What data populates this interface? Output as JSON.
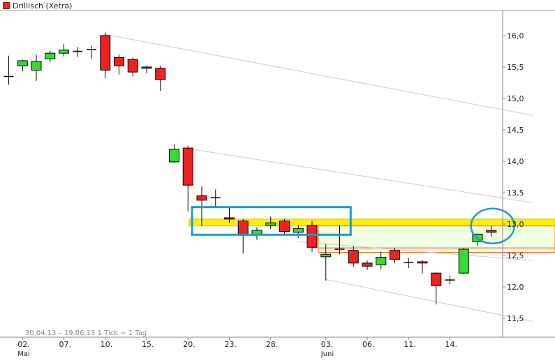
{
  "legend": {
    "label": "Drillisch (Xetra)"
  },
  "footer": {
    "note": "30.04.13 – 19.06.13   1 Tick = 1 Tag"
  },
  "chart_data": {
    "type": "candlestick",
    "ylim": [
      11.2,
      16.4
    ],
    "yticks": [
      11.5,
      12.0,
      12.5,
      13.0,
      13.5,
      14.0,
      14.5,
      15.0,
      15.5,
      16.0
    ],
    "ytick_labels": [
      "11,5",
      "12,0",
      "12,5",
      "13,0",
      "13,5",
      "14,0",
      "14,5",
      "15,0",
      "15,5",
      "16,0"
    ],
    "x_labels": [
      {
        "index": 1,
        "label": "02.",
        "sub": "Mai"
      },
      {
        "index": 4,
        "label": "07.",
        "sub": ""
      },
      {
        "index": 7,
        "label": "10.",
        "sub": ""
      },
      {
        "index": 10,
        "label": "15.",
        "sub": ""
      },
      {
        "index": 13,
        "label": "20.",
        "sub": ""
      },
      {
        "index": 16,
        "label": "23.",
        "sub": ""
      },
      {
        "index": 19,
        "label": "28.",
        "sub": ""
      },
      {
        "index": 23,
        "label": "03.",
        "sub": "Juni"
      },
      {
        "index": 26,
        "label": "06.",
        "sub": ""
      },
      {
        "index": 29,
        "label": "11.",
        "sub": ""
      },
      {
        "index": 32,
        "label": "14.",
        "sub": ""
      }
    ],
    "candles": [
      {
        "o": 15.35,
        "h": 15.68,
        "l": 15.22,
        "c": 15.35
      },
      {
        "o": 15.52,
        "h": 15.62,
        "l": 15.43,
        "c": 15.6
      },
      {
        "o": 15.45,
        "h": 15.7,
        "l": 15.28,
        "c": 15.59
      },
      {
        "o": 15.63,
        "h": 15.76,
        "l": 15.58,
        "c": 15.72
      },
      {
        "o": 15.72,
        "h": 15.87,
        "l": 15.67,
        "c": 15.77
      },
      {
        "o": 15.75,
        "h": 15.82,
        "l": 15.66,
        "c": 15.75
      },
      {
        "o": 15.78,
        "h": 15.84,
        "l": 15.63,
        "c": 15.78
      },
      {
        "o": 16.0,
        "h": 16.05,
        "l": 15.32,
        "c": 15.45
      },
      {
        "o": 15.65,
        "h": 15.7,
        "l": 15.38,
        "c": 15.52
      },
      {
        "o": 15.62,
        "h": 15.65,
        "l": 15.35,
        "c": 15.42
      },
      {
        "o": 15.5,
        "h": 15.52,
        "l": 15.4,
        "c": 15.48
      },
      {
        "o": 15.48,
        "h": 15.52,
        "l": 15.12,
        "c": 15.3
      },
      {
        "o": 13.99,
        "h": 14.27,
        "l": 13.98,
        "c": 14.19
      },
      {
        "o": 14.21,
        "h": 14.25,
        "l": 13.2,
        "c": 13.62
      },
      {
        "o": 13.45,
        "h": 13.6,
        "l": 12.97,
        "c": 13.38
      },
      {
        "o": 13.42,
        "h": 13.55,
        "l": 13.28,
        "c": 13.42
      },
      {
        "o": 13.1,
        "h": 13.28,
        "l": 13.02,
        "c": 13.08
      },
      {
        "o": 13.05,
        "h": 13.08,
        "l": 12.53,
        "c": 12.82
      },
      {
        "o": 12.83,
        "h": 12.95,
        "l": 12.75,
        "c": 12.9
      },
      {
        "o": 12.98,
        "h": 13.12,
        "l": 12.92,
        "c": 13.02
      },
      {
        "o": 13.05,
        "h": 13.08,
        "l": 12.82,
        "c": 12.88
      },
      {
        "o": 12.87,
        "h": 12.98,
        "l": 12.78,
        "c": 12.93
      },
      {
        "o": 12.98,
        "h": 13.05,
        "l": 12.56,
        "c": 12.63
      },
      {
        "o": 12.48,
        "h": 12.68,
        "l": 12.1,
        "c": 12.52
      },
      {
        "o": 12.6,
        "h": 12.98,
        "l": 12.52,
        "c": 12.6
      },
      {
        "o": 12.58,
        "h": 12.65,
        "l": 12.32,
        "c": 12.38
      },
      {
        "o": 12.38,
        "h": 12.42,
        "l": 12.27,
        "c": 12.33
      },
      {
        "o": 12.35,
        "h": 12.56,
        "l": 12.28,
        "c": 12.47
      },
      {
        "o": 12.58,
        "h": 12.62,
        "l": 12.38,
        "c": 12.44
      },
      {
        "o": 12.39,
        "h": 12.46,
        "l": 12.3,
        "c": 12.39
      },
      {
        "o": 12.4,
        "h": 12.43,
        "l": 12.22,
        "c": 12.38
      },
      {
        "o": 12.22,
        "h": 12.23,
        "l": 11.72,
        "c": 12.02
      },
      {
        "o": 12.11,
        "h": 12.18,
        "l": 12.04,
        "c": 12.11
      },
      {
        "o": 12.22,
        "h": 12.62,
        "l": 12.2,
        "c": 12.6
      },
      {
        "o": 12.72,
        "h": 12.85,
        "l": 12.65,
        "c": 12.84
      },
      {
        "o": 12.9,
        "h": 12.97,
        "l": 12.8,
        "c": 12.87
      }
    ],
    "trend_lines": [
      {
        "from": [
          7,
          16.02
        ],
        "to": [
          38,
          14.73
        ]
      },
      {
        "from": [
          13,
          14.2
        ],
        "to": [
          38,
          13.34
        ]
      },
      {
        "from": [
          21,
          12.72
        ],
        "to": [
          38,
          12.42
        ]
      },
      {
        "from": [
          23,
          12.12
        ],
        "to": [
          38,
          11.45
        ]
      }
    ],
    "bands": [
      {
        "y0": 12.97,
        "y1": 13.08,
        "fill": "#ffee00"
      },
      {
        "y0": 12.62,
        "y1": 12.97,
        "fill": "#efffdf"
      },
      {
        "y0": 12.55,
        "y1": 12.62,
        "fill": "#fff4ea"
      }
    ],
    "colors": {
      "up": "#33dd33",
      "down": "#ee2222",
      "box": "#1d9ad6",
      "orange": "#f07020",
      "trend": "#cccccc"
    }
  }
}
